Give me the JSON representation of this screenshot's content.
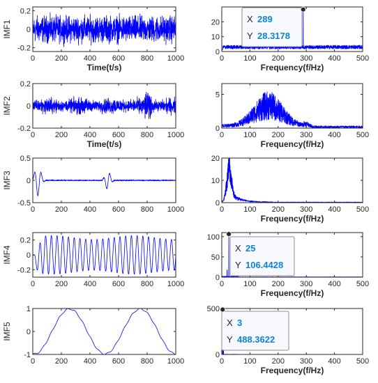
{
  "chart_data": [
    {
      "id": "imf1-time",
      "type": "line",
      "ylabel": "IMF1",
      "xlabel": "Time(t/s)",
      "xlim": [
        0,
        1000
      ],
      "ylim": [
        -0.24,
        0.24
      ],
      "xticks": [
        0,
        200,
        400,
        600,
        800,
        1000
      ],
      "xticklabels": [
        "0",
        "200",
        "400",
        "600",
        "800",
        "1000"
      ],
      "yticks": [
        -0.2,
        0,
        0.2
      ],
      "yticklabels": [
        "-0.2",
        "0",
        "0.2"
      ],
      "signal": {
        "kind": "noise",
        "amp": 0.2
      }
    },
    {
      "id": "imf1-freq",
      "type": "line",
      "ylabel": "",
      "xlabel": "Frequency(f/Hz)",
      "xlim": [
        0,
        500
      ],
      "ylim": [
        0,
        30
      ],
      "xticks": [
        0,
        100,
        200,
        300,
        400,
        500
      ],
      "xticklabels": [
        "0",
        "100",
        "200",
        "300",
        "400",
        "500"
      ],
      "yticks": [
        0,
        10,
        20
      ],
      "yticklabels": [
        "0",
        "10",
        "20"
      ],
      "signal": {
        "kind": "spec-flat",
        "base": 2.5,
        "peak_x": 289,
        "peak_y": 28.3178
      },
      "datatip": {
        "x_key": "X",
        "x_value": "289",
        "y_key": "Y",
        "y_value": "28.3178",
        "x": 289,
        "y": 28.3178
      }
    },
    {
      "id": "imf2-time",
      "type": "line",
      "ylabel": "IMF2",
      "xlabel": "Time(t/s)",
      "xlim": [
        0,
        1000
      ],
      "ylim": [
        -0.2,
        0.2
      ],
      "xticks": [
        0,
        200,
        400,
        600,
        800,
        1000
      ],
      "xticklabels": [
        "0",
        "200",
        "400",
        "600",
        "800",
        "1000"
      ],
      "yticks": [
        -0.2,
        0,
        0.2
      ],
      "yticklabels": [
        "-0.2",
        "0",
        "0.2"
      ],
      "signal": {
        "kind": "noise",
        "amp": 0.1
      }
    },
    {
      "id": "imf2-freq",
      "type": "line",
      "ylabel": "",
      "xlabel": "Frequency(f/Hz)",
      "xlim": [
        0,
        500
      ],
      "ylim": [
        0,
        6.6
      ],
      "xticks": [
        0,
        100,
        200,
        300,
        400,
        500
      ],
      "xticklabels": [
        "0",
        "100",
        "200",
        "300",
        "400",
        "500"
      ],
      "yticks": [
        0,
        5
      ],
      "yticklabels": [
        "0",
        "5"
      ],
      "signal": {
        "kind": "spec-hump",
        "center": 165,
        "width": 70,
        "height": 3.5
      }
    },
    {
      "id": "imf3-time",
      "type": "line",
      "ylabel": "IMF3",
      "xlabel": "",
      "xlim": [
        0,
        1000
      ],
      "ylim": [
        -0.5,
        0.5
      ],
      "xticks": [
        0,
        200,
        400,
        600,
        800,
        1000
      ],
      "xticklabels": [
        "0",
        "200",
        "400",
        "600",
        "800",
        "1000"
      ],
      "yticks": [
        -0.5,
        0,
        0.5
      ],
      "yticklabels": [
        "-0.5",
        "0",
        "0.5"
      ],
      "signal": {
        "kind": "bursts"
      }
    },
    {
      "id": "imf3-freq",
      "type": "line",
      "ylabel": "",
      "xlabel": "Frequency(f/Hz)",
      "xlim": [
        0,
        500
      ],
      "ylim": [
        0,
        20
      ],
      "xticks": [
        0,
        100,
        200,
        300,
        400,
        500
      ],
      "xticklabels": [
        "0",
        "100",
        "200",
        "300",
        "400",
        "500"
      ],
      "yticks": [
        0,
        10,
        20
      ],
      "yticklabels": [
        "0",
        "10",
        "20"
      ],
      "signal": {
        "kind": "spec-low",
        "center": 25,
        "width": 35,
        "height": 14
      }
    },
    {
      "id": "imf4-time",
      "type": "line",
      "ylabel": "IMF4",
      "xlabel": "",
      "xlim": [
        0,
        1000
      ],
      "ylim": [
        -0.3,
        0.3
      ],
      "xticks": [
        0,
        200,
        400,
        600,
        800,
        1000
      ],
      "xticklabels": [
        "0",
        "200",
        "400",
        "600",
        "800",
        "1000"
      ],
      "yticks": [
        -0.2,
        0,
        0.2
      ],
      "yticklabels": [
        "-0.2",
        "0",
        "0.2"
      ],
      "signal": {
        "kind": "sine",
        "amp": 0.26,
        "freq": 25
      }
    },
    {
      "id": "imf4-freq",
      "type": "line",
      "ylabel": "",
      "xlabel": "Frequency(f/Hz)",
      "xlim": [
        0,
        500
      ],
      "ylim": [
        0,
        110
      ],
      "xticks": [
        0,
        100,
        200,
        300,
        400,
        500
      ],
      "xticklabels": [
        "0",
        "100",
        "200",
        "300",
        "400",
        "500"
      ],
      "yticks": [
        0,
        50,
        100
      ],
      "yticklabels": [
        "0",
        "50",
        "100"
      ],
      "signal": {
        "kind": "spec-line",
        "peak_x": 25,
        "peak_y": 106.4428,
        "sub_x": 19,
        "sub_y": 18
      },
      "datatip": {
        "x_key": "X",
        "x_value": "25",
        "y_key": "Y",
        "y_value": "106.4428",
        "x": 25,
        "y": 106.4428
      }
    },
    {
      "id": "imf5-time",
      "type": "line",
      "ylabel": "IMF5",
      "xlabel": "",
      "xlim": [
        0,
        1000
      ],
      "ylim": [
        -1,
        1
      ],
      "xticks": [
        0,
        200,
        400,
        600,
        800,
        1000
      ],
      "xticklabels": [
        "0",
        "200",
        "400",
        "600",
        "800",
        "1000"
      ],
      "yticks": [
        -1,
        0,
        1
      ],
      "yticklabels": [
        "-1",
        "0",
        "1"
      ],
      "signal": {
        "kind": "slow"
      }
    },
    {
      "id": "imf5-freq",
      "type": "line",
      "ylabel": "",
      "xlabel": "Frequency(f/Hz)",
      "xlim": [
        0,
        500
      ],
      "ylim": [
        0,
        500
      ],
      "xticks": [
        0,
        100,
        200,
        300,
        400,
        500
      ],
      "xticklabels": [
        "0",
        "100",
        "200",
        "300",
        "400",
        "500"
      ],
      "yticks": [
        0,
        500
      ],
      "yticklabels": [
        "0",
        "500"
      ],
      "signal": {
        "kind": "spec-line",
        "peak_x": 3,
        "peak_y": 488.3622,
        "sub_x": 6,
        "sub_y": 60
      },
      "datatip": {
        "x_key": "X",
        "x_value": "3",
        "y_key": "Y",
        "y_value": "488.3622",
        "x": 3,
        "y": 488.3622
      }
    }
  ]
}
